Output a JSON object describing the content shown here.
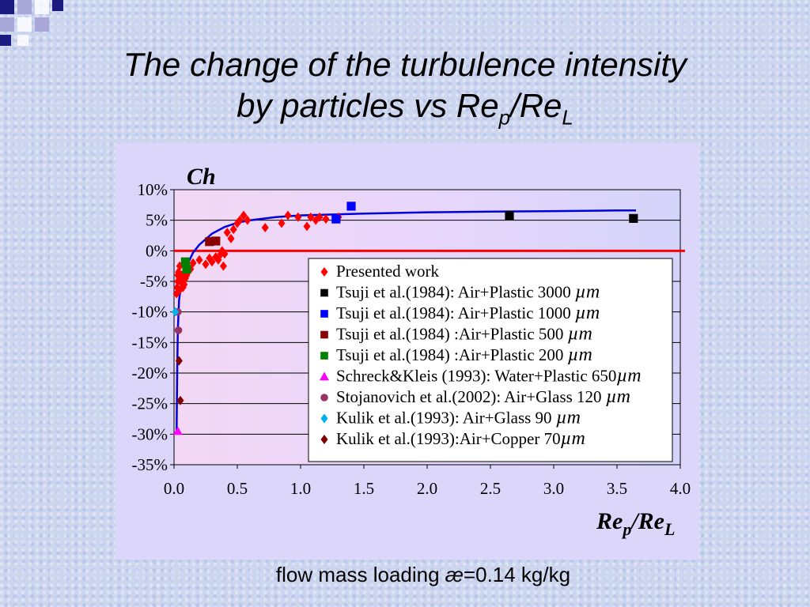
{
  "slide": {
    "title_line1": "The change of the turbulence intensity",
    "title_line2_prefix": "by particles vs Re",
    "title_sub_p": "p",
    "title_sep": "/Re",
    "title_sub_L": "L",
    "footer_prefix": "flow mass loading ",
    "footer_symbol": "æ",
    "footer_suffix": "=0.14 kg/kg"
  },
  "colors": {
    "accent_navy": "#1a1a80",
    "deco_lavender": "#a9a6d8",
    "plot_bg": "#e4d6fb",
    "zero_line": "#ff0000",
    "fit_curve": "#0000dd"
  },
  "chart_data": {
    "type": "scatter",
    "ylabel": "Ch",
    "xlabel_main1": "Re",
    "xlabel_sub1": "p",
    "xlabel_main2": "/Re",
    "xlabel_sub2": "L",
    "xlim": [
      0,
      4.0
    ],
    "ylim": [
      -35,
      10
    ],
    "xticks": [
      "0.0",
      "0.5",
      "1.0",
      "1.5",
      "2.0",
      "2.5",
      "3.0",
      "3.5",
      "4.0"
    ],
    "yticks": [
      "10%",
      "5%",
      "0%",
      "-5%",
      "-10%",
      "-15%",
      "-20%",
      "-25%",
      "-30%",
      "-35%"
    ],
    "grid": true,
    "reference_line_y": 0,
    "fit_curve": [
      [
        0.02,
        -30
      ],
      [
        0.025,
        -20
      ],
      [
        0.03,
        -13
      ],
      [
        0.04,
        -8
      ],
      [
        0.06,
        -5
      ],
      [
        0.1,
        -2.5
      ],
      [
        0.15,
        -0.3
      ],
      [
        0.2,
        1
      ],
      [
        0.3,
        2.8
      ],
      [
        0.4,
        3.9
      ],
      [
        0.5,
        4.6
      ],
      [
        0.6,
        5.0
      ],
      [
        0.8,
        5.5
      ],
      [
        1.0,
        5.8
      ],
      [
        1.5,
        6.1
      ],
      [
        2.0,
        6.3
      ],
      [
        2.5,
        6.4
      ],
      [
        3.0,
        6.5
      ],
      [
        3.5,
        6.6
      ],
      [
        3.65,
        6.6
      ]
    ],
    "series": [
      {
        "name": "Presented work",
        "marker": "diamond",
        "color": "#ff0000",
        "points": [
          [
            0.02,
            -7
          ],
          [
            0.025,
            -6
          ],
          [
            0.03,
            -5
          ],
          [
            0.03,
            -4
          ],
          [
            0.035,
            -3.5
          ],
          [
            0.04,
            -6.5
          ],
          [
            0.045,
            -2.5
          ],
          [
            0.05,
            -5
          ],
          [
            0.06,
            -4
          ],
          [
            0.07,
            -6
          ],
          [
            0.08,
            -5.5
          ],
          [
            0.09,
            -4.5
          ],
          [
            0.1,
            -4
          ],
          [
            0.11,
            -3.5
          ],
          [
            0.13,
            -3
          ],
          [
            0.15,
            -2
          ],
          [
            0.2,
            -1.5
          ],
          [
            0.25,
            -2.2
          ],
          [
            0.28,
            -1.2
          ],
          [
            0.3,
            -1.8
          ],
          [
            0.33,
            -1
          ],
          [
            0.35,
            -1.5
          ],
          [
            0.37,
            -0.5
          ],
          [
            0.38,
            0
          ],
          [
            0.39,
            -2.5
          ],
          [
            0.4,
            -0.5
          ],
          [
            0.42,
            3
          ],
          [
            0.45,
            2
          ],
          [
            0.47,
            3.5
          ],
          [
            0.5,
            4.5
          ],
          [
            0.52,
            5
          ],
          [
            0.55,
            5.8
          ],
          [
            0.58,
            5
          ],
          [
            0.72,
            3.8
          ],
          [
            0.85,
            4.5
          ],
          [
            0.9,
            5.8
          ],
          [
            0.98,
            5.5
          ],
          [
            1.05,
            4
          ],
          [
            1.08,
            5.5
          ],
          [
            1.12,
            5
          ],
          [
            1.15,
            5.5
          ],
          [
            1.2,
            5.2
          ],
          [
            1.3,
            5.5
          ]
        ]
      },
      {
        "name": "Tsuji et al.(1984): Air+Plastic 3000 ",
        "unit": "µm",
        "marker": "square",
        "color": "#000000",
        "points": [
          [
            2.65,
            5.8
          ],
          [
            3.63,
            5.3
          ]
        ]
      },
      {
        "name": "Tsuji et al.(1984): Air+Plastic 1000 ",
        "unit": "µm",
        "marker": "square",
        "color": "#0000ff",
        "points": [
          [
            1.28,
            5.2
          ],
          [
            1.4,
            7.3
          ]
        ]
      },
      {
        "name": "Tsuji et al.(1984) :Air+Plastic 500 ",
        "unit": "µm",
        "marker": "square",
        "color": "#8b0000",
        "points": [
          [
            0.28,
            1.5
          ],
          [
            0.33,
            1.6
          ]
        ]
      },
      {
        "name": "Tsuji et al.(1984) :Air+Plastic 200 ",
        "unit": "µm",
        "marker": "square",
        "color": "#008000",
        "points": [
          [
            0.09,
            -1.8
          ],
          [
            0.1,
            -3
          ]
        ]
      },
      {
        "name": "Schreck&Kleis (1993): Water+Plastic 650",
        "unit": "µm",
        "marker": "triangle",
        "color": "#ff00ff",
        "points": [
          [
            0.03,
            -29.5
          ]
        ]
      },
      {
        "name": "Stojanovich et al.(2002): Air+Glass 120 ",
        "unit": "µm",
        "marker": "circle",
        "color": "#993366",
        "points": [
          [
            0.03,
            -10
          ],
          [
            0.035,
            -13
          ]
        ]
      },
      {
        "name": "Kulik et al.(1993): Air+Glass 90 ",
        "unit": "µm",
        "marker": "diamond",
        "color": "#00b0f0",
        "points": [
          [
            0.01,
            -10
          ]
        ]
      },
      {
        "name": "Kulik et al.(1993):Air+Copper 70",
        "unit": "µm",
        "marker": "diamond",
        "color": "#800000",
        "points": [
          [
            0.04,
            -18
          ],
          [
            0.05,
            -24.5
          ]
        ]
      }
    ]
  }
}
